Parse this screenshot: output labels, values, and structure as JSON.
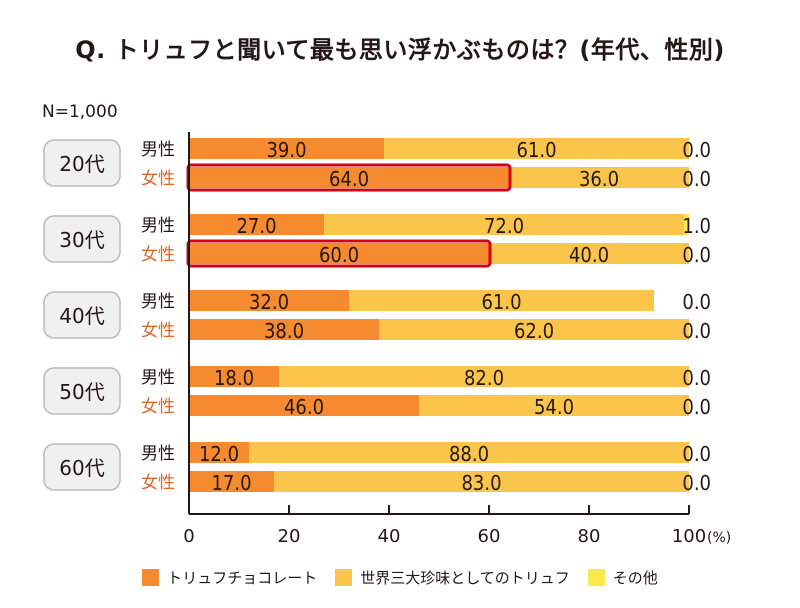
{
  "title": "Q. トリュフと聞いて最も思い浮かぶものは？(年代、性別)",
  "sample_size": "N=1,000",
  "colors": {
    "chocolate": "#F58A2E",
    "delicacy": "#FBC54B",
    "other": "#FBE84A",
    "highlight": "#D7000F",
    "male_label": "#231815",
    "female_label": "#E0672A",
    "age_box_bg": "#F0F0F0",
    "age_box_border": "#BBBBBB"
  },
  "chart_data": {
    "type": "bar",
    "orientation": "horizontal",
    "stacked": true,
    "title": "Q. トリュフと聞いて最も思い浮かぶものは？(年代、性別)",
    "xlabel": "(%)",
    "xlim": [
      0,
      100
    ],
    "xticks": [
      "0",
      "20",
      "40",
      "60",
      "80",
      "100"
    ],
    "x_unit": "(%)",
    "legend": [
      "トリュフチョコレート",
      "世界三大珍味としてのトリュフ",
      "その他"
    ],
    "legend_position": "bottom",
    "groups": [
      {
        "age": "20代",
        "rows": [
          {
            "gender": "男性",
            "values": [
              39.0,
              61.0,
              0.0
            ],
            "highlight": false
          },
          {
            "gender": "女性",
            "values": [
              64.0,
              36.0,
              0.0
            ],
            "highlight": true
          }
        ]
      },
      {
        "age": "30代",
        "rows": [
          {
            "gender": "男性",
            "values": [
              27.0,
              72.0,
              1.0
            ],
            "highlight": false
          },
          {
            "gender": "女性",
            "values": [
              60.0,
              40.0,
              0.0
            ],
            "highlight": true
          }
        ]
      },
      {
        "age": "40代",
        "rows": [
          {
            "gender": "男性",
            "values": [
              32.0,
              61.0,
              0.0
            ],
            "highlight": false
          },
          {
            "gender": "女性",
            "values": [
              38.0,
              62.0,
              0.0
            ],
            "highlight": false
          }
        ]
      },
      {
        "age": "50代",
        "rows": [
          {
            "gender": "男性",
            "values": [
              18.0,
              82.0,
              0.0
            ],
            "highlight": false
          },
          {
            "gender": "女性",
            "values": [
              46.0,
              54.0,
              0.0
            ],
            "highlight": false
          }
        ]
      },
      {
        "age": "60代",
        "rows": [
          {
            "gender": "男性",
            "values": [
              12.0,
              88.0,
              0.0
            ],
            "highlight": false
          },
          {
            "gender": "女性",
            "values": [
              17.0,
              83.0,
              0.0
            ],
            "highlight": false
          }
        ]
      }
    ]
  }
}
